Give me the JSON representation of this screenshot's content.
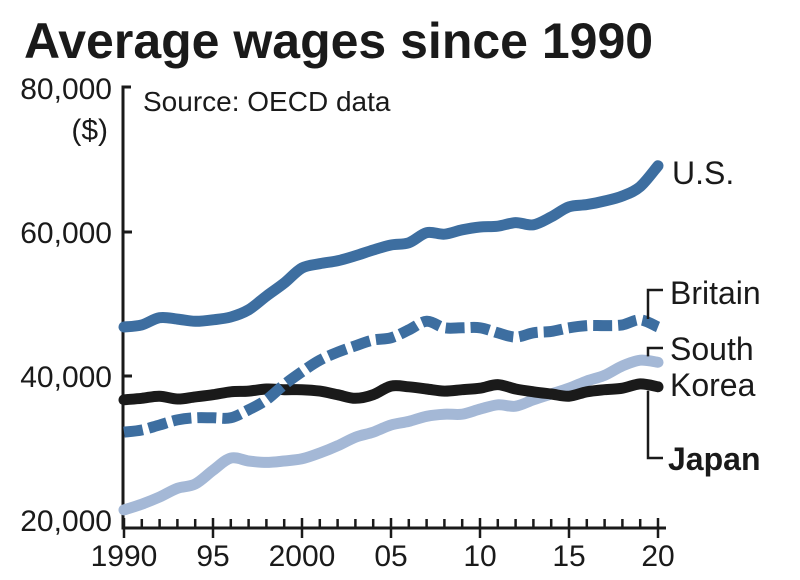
{
  "chart_data": {
    "type": "line",
    "title": "Average wages since 1990",
    "source": "Source: OECD data",
    "ylabel": "($)",
    "xlabel": "",
    "ylim": [
      20000,
      80000
    ],
    "xlim": [
      1990,
      2020
    ],
    "y_ticks": [
      {
        "value": 80000,
        "label": "80,000"
      },
      {
        "value": 60000,
        "label": "60,000"
      },
      {
        "value": 40000,
        "label": "40,000"
      },
      {
        "value": 20000,
        "label": "20,000"
      }
    ],
    "x_ticks": [
      {
        "value": 1990,
        "label": "1990"
      },
      {
        "value": 1995,
        "label": "95"
      },
      {
        "value": 2000,
        "label": "2000"
      },
      {
        "value": 2005,
        "label": "05"
      },
      {
        "value": 2010,
        "label": "10"
      },
      {
        "value": 2015,
        "label": "15"
      },
      {
        "value": 2020,
        "label": "20"
      }
    ],
    "grid": false,
    "legend": "direct-labels-right",
    "x": [
      1990,
      1991,
      1992,
      1993,
      1994,
      1995,
      1996,
      1997,
      1998,
      1999,
      2000,
      2001,
      2002,
      2003,
      2004,
      2005,
      2006,
      2007,
      2008,
      2009,
      2010,
      2011,
      2012,
      2013,
      2014,
      2015,
      2016,
      2017,
      2018,
      2019,
      2020
    ],
    "series": [
      {
        "name": "U.S.",
        "label_lines": [
          "U.S."
        ],
        "color": "#3d6ea0",
        "style": "solid",
        "bold_label": false,
        "values": [
          46800,
          47100,
          48100,
          47900,
          47600,
          47800,
          48200,
          49200,
          51100,
          52900,
          55000,
          55600,
          56000,
          56700,
          57500,
          58200,
          58500,
          59900,
          59700,
          60300,
          60700,
          60800,
          61300,
          61000,
          62100,
          63500,
          63800,
          64300,
          65000,
          66300,
          69200
        ]
      },
      {
        "name": "Britain",
        "label_lines": [
          "Britain"
        ],
        "color": "#3d6ea0",
        "style": "dashed",
        "bold_label": false,
        "values": [
          32200,
          32500,
          33200,
          33900,
          34200,
          34200,
          34200,
          35300,
          36700,
          38800,
          40600,
          42200,
          43300,
          44200,
          45000,
          45300,
          46400,
          47600,
          46700,
          46700,
          46700,
          46000,
          45400,
          46000,
          46200,
          46700,
          47000,
          47000,
          47100,
          47800,
          46800
        ]
      },
      {
        "name": "South Korea",
        "label_lines": [
          "South",
          "Korea"
        ],
        "color": "#a4b8d6",
        "style": "solid",
        "bold_label": false,
        "values": [
          21400,
          22200,
          23200,
          24400,
          25000,
          26900,
          28600,
          28200,
          28000,
          28200,
          28500,
          29300,
          30300,
          31500,
          32200,
          33200,
          33700,
          34400,
          34700,
          34700,
          35400,
          36000,
          35800,
          36700,
          37500,
          38300,
          39300,
          40100,
          41400,
          42200,
          41900
        ]
      },
      {
        "name": "Japan",
        "label_lines": [
          "Japan"
        ],
        "color": "#1a1a1a",
        "style": "solid",
        "bold_label": true,
        "values": [
          36700,
          36900,
          37200,
          36800,
          37100,
          37400,
          37800,
          37900,
          38200,
          38100,
          38100,
          37900,
          37400,
          36900,
          37400,
          38600,
          38500,
          38200,
          37900,
          38100,
          38300,
          38800,
          38200,
          37800,
          37500,
          37200,
          37800,
          38100,
          38300,
          38900,
          38500
        ]
      }
    ]
  }
}
